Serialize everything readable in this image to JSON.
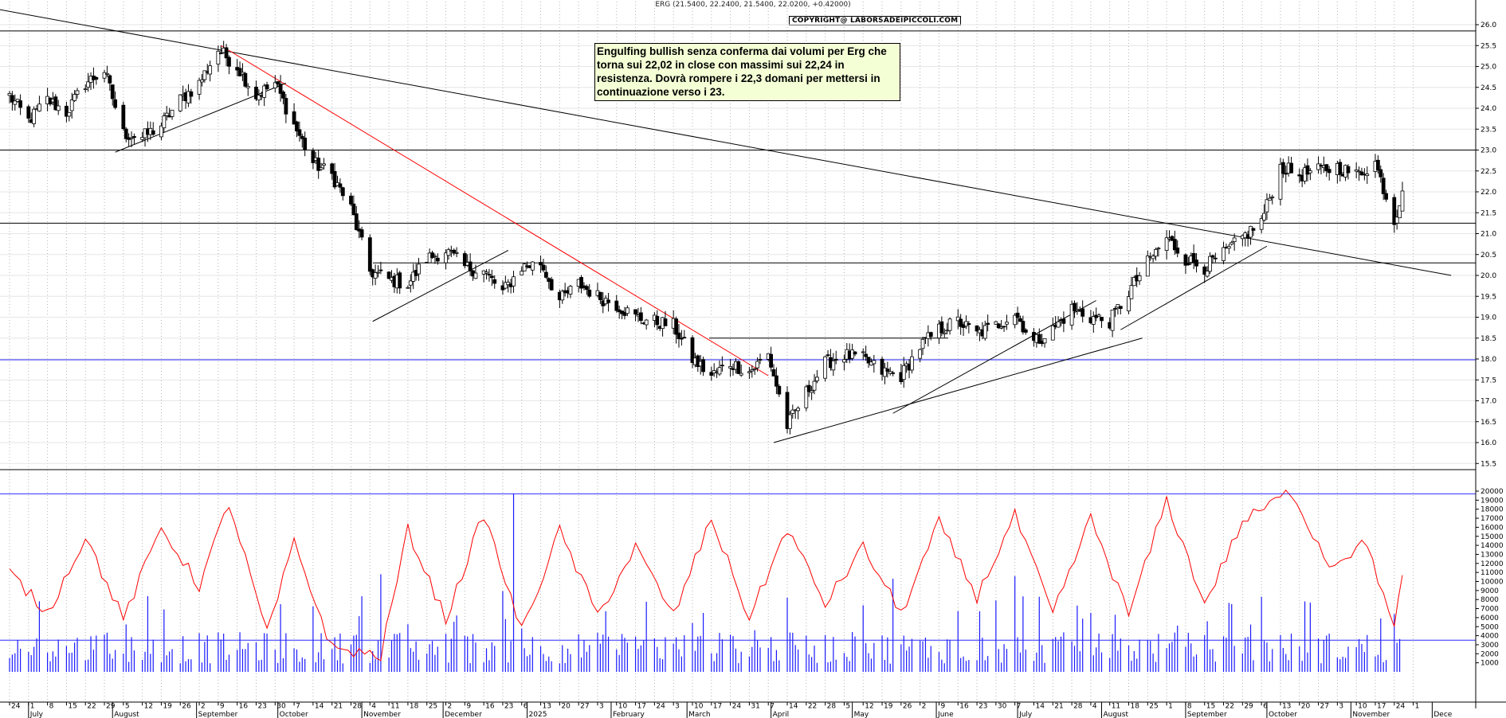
{
  "header": {
    "ticker_line": "ERG (21.5400, 22.2400, 21.5400, 22.0200, +0.42000)",
    "copyright": "COPYRIGHT@ LABORSADEIPICCOLI.COM"
  },
  "annotation": {
    "text": "Engulfing bullish senza conferma dai volumi per Erg che torna sui 22,02 in close con massimi sui 22,24 in resistenza. Dovrà rompere i 22,3 domani per mettersi in continuazione verso i 23."
  },
  "colors": {
    "candle": "#000000",
    "volume": "#1a1aff",
    "volume_ma": "#ff0000",
    "red_trendline": "#ff0000",
    "blue_level": "#2a2aff",
    "grid": "#b4b4b4"
  },
  "chart_data": [
    {
      "type": "candlestick",
      "name": "ERG daily",
      "ylim": [
        15.2,
        26.2
      ],
      "y_ticks": [
        "15.5",
        "16.0",
        "16.5",
        "17.0",
        "17.5",
        "18.0",
        "18.5",
        "19.0",
        "19.5",
        "20.0",
        "20.5",
        "21.0",
        "21.5",
        "22.0",
        "22.5",
        "23.0",
        "23.5",
        "24.0",
        "24.5",
        "25.0",
        "25.5",
        "26.0"
      ],
      "close_path": [
        [
          "2024-06-24",
          24.3
        ],
        [
          "2024-07-01",
          23.7
        ],
        [
          "2024-07-08",
          24.2
        ],
        [
          "2024-07-15",
          23.9
        ],
        [
          "2024-07-22",
          24.6
        ],
        [
          "2024-07-29",
          24.9
        ],
        [
          "2024-08-05",
          23.4
        ],
        [
          "2024-08-12",
          23.3
        ],
        [
          "2024-08-19",
          23.6
        ],
        [
          "2024-08-26",
          24.2
        ],
        [
          "2024-09-02",
          24.6
        ],
        [
          "2024-09-09",
          25.4
        ],
        [
          "2024-09-16",
          25.0
        ],
        [
          "2024-09-23",
          24.3
        ],
        [
          "2024-09-30",
          24.6
        ],
        [
          "2024-10-07",
          23.6
        ],
        [
          "2024-10-14",
          22.7
        ],
        [
          "2024-10-21",
          22.4
        ],
        [
          "2024-10-28",
          21.6
        ],
        [
          "2024-11-04",
          20.1
        ],
        [
          "2024-11-11",
          19.9
        ],
        [
          "2024-11-18",
          19.8
        ],
        [
          "2024-11-25",
          20.4
        ],
        [
          "2024-12-02",
          20.6
        ],
        [
          "2024-12-09",
          20.2
        ],
        [
          "2024-12-16",
          20.1
        ],
        [
          "2024-12-23",
          19.6
        ],
        [
          "2024-12-30",
          20.2
        ],
        [
          "2025-01-06",
          20.3
        ],
        [
          "2025-01-13",
          19.4
        ],
        [
          "2025-01-20",
          19.8
        ],
        [
          "2025-01-27",
          19.5
        ],
        [
          "2025-02-03",
          19.3
        ],
        [
          "2025-02-10",
          19.0
        ],
        [
          "2025-02-17",
          18.9
        ],
        [
          "2025-02-24",
          18.8
        ],
        [
          "2025-03-03",
          18.0
        ],
        [
          "2025-03-10",
          17.6
        ],
        [
          "2025-03-17",
          17.9
        ],
        [
          "2025-03-24",
          17.7
        ],
        [
          "2025-03-31",
          18.1
        ],
        [
          "2025-04-07",
          16.4
        ],
        [
          "2025-04-14",
          17.2
        ],
        [
          "2025-04-21",
          17.9
        ],
        [
          "2025-04-28",
          18.1
        ],
        [
          "2025-05-05",
          18.0
        ],
        [
          "2025-05-12",
          17.7
        ],
        [
          "2025-05-19",
          17.6
        ],
        [
          "2025-05-26",
          18.3
        ],
        [
          "2025-06-02",
          18.7
        ],
        [
          "2025-06-09",
          18.9
        ],
        [
          "2025-06-16",
          18.6
        ],
        [
          "2025-06-23",
          18.8
        ],
        [
          "2025-06-30",
          19.1
        ],
        [
          "2025-07-07",
          18.4
        ],
        [
          "2025-07-14",
          18.7
        ],
        [
          "2025-07-21",
          19.2
        ],
        [
          "2025-07-28",
          19.0
        ],
        [
          "2025-08-04",
          18.9
        ],
        [
          "2025-08-11",
          19.6
        ],
        [
          "2025-08-18",
          20.3
        ],
        [
          "2025-08-25",
          20.9
        ],
        [
          "2025-09-01",
          20.4
        ],
        [
          "2025-09-08",
          20.2
        ],
        [
          "2025-09-15",
          20.5
        ],
        [
          "2025-09-22",
          20.9
        ],
        [
          "2025-09-29",
          21.3
        ],
        [
          "2025-10-06",
          22.6
        ],
        [
          "2025-10-13",
          22.4
        ],
        [
          "2025-10-20",
          22.5
        ],
        [
          "2025-10-27",
          22.6
        ],
        [
          "2025-11-03",
          22.4
        ],
        [
          "2025-11-10",
          22.7
        ],
        [
          "2025-11-17",
          21.3
        ],
        [
          "2025-11-20",
          22.02
        ]
      ],
      "last_bar": {
        "open": 21.54,
        "high": 22.24,
        "low": 21.54,
        "close": 22.02,
        "change": 0.42
      },
      "horizontal_levels": [
        {
          "value": 25.85,
          "color": "black"
        },
        {
          "value": 23.0,
          "color": "black"
        },
        {
          "value": 21.25,
          "color": "black"
        },
        {
          "value": 20.3,
          "color": "black"
        },
        {
          "value": 18.5,
          "color": "black"
        },
        {
          "value": 17.98,
          "color": "blue"
        }
      ],
      "trendlines": [
        {
          "from": [
            "2024-06-17",
            26.4
          ],
          "to": [
            "2025-12-08",
            20.0
          ],
          "color": "black"
        },
        {
          "from": [
            "2024-09-10",
            25.5
          ],
          "to": [
            "2025-03-31",
            17.6
          ],
          "color": "red"
        },
        {
          "from": [
            "2024-08-02",
            22.95
          ],
          "to": [
            "2024-10-04",
            24.6
          ],
          "color": "black"
        },
        {
          "from": [
            "2024-11-05",
            18.9
          ],
          "to": [
            "2024-12-25",
            20.6
          ],
          "color": "black"
        },
        {
          "from": [
            "2025-04-02",
            16.0
          ],
          "to": [
            "2025-08-16",
            18.5
          ],
          "color": "black"
        },
        {
          "from": [
            "2025-05-16",
            16.7
          ],
          "to": [
            "2025-07-30",
            19.4
          ],
          "color": "black"
        },
        {
          "from": [
            "2025-08-08",
            18.7
          ],
          "to": [
            "2025-10-01",
            20.7
          ],
          "color": "black"
        }
      ]
    },
    {
      "type": "bar",
      "name": "Volume",
      "ylim": [
        0,
        20000
      ],
      "y_ticks": [
        "1000",
        "2000",
        "3000",
        "4000",
        "5000",
        "6000",
        "7000",
        "8000",
        "9000",
        "10000",
        "11000",
        "12000",
        "13000",
        "14000",
        "15000",
        "16000",
        "17000",
        "18000",
        "19000",
        "20000"
      ],
      "horizontal_levels": [
        3500,
        19700
      ],
      "spikes": [
        [
          "2024-12-27",
          19700
        ],
        [
          "2024-11-08",
          10800
        ],
        [
          "2025-04-07",
          8200
        ],
        [
          "2025-05-16",
          10300
        ],
        [
          "2025-11-17",
          6400
        ],
        [
          "2025-06-30",
          10600
        ]
      ]
    },
    {
      "type": "line",
      "name": "Volume moving average",
      "ylim": [
        0,
        20000
      ],
      "values_path": [
        [
          "2024-06-24",
          11000
        ],
        [
          "2024-07-08",
          6500
        ],
        [
          "2024-07-22",
          15000
        ],
        [
          "2024-08-05",
          5800
        ],
        [
          "2024-08-19",
          16000
        ],
        [
          "2024-09-02",
          9500
        ],
        [
          "2024-09-13",
          18700
        ],
        [
          "2024-09-27",
          4200
        ],
        [
          "2024-10-07",
          14300
        ],
        [
          "2024-10-21",
          2600
        ],
        [
          "2024-11-08",
          1800
        ],
        [
          "2024-11-18",
          15700
        ],
        [
          "2024-12-02",
          5800
        ],
        [
          "2024-12-16",
          17500
        ],
        [
          "2024-12-30",
          4500
        ],
        [
          "2025-01-13",
          15600
        ],
        [
          "2025-01-27",
          6200
        ],
        [
          "2025-02-10",
          13800
        ],
        [
          "2025-02-24",
          6200
        ],
        [
          "2025-03-10",
          17000
        ],
        [
          "2025-03-24",
          5900
        ],
        [
          "2025-04-07",
          15900
        ],
        [
          "2025-04-21",
          7500
        ],
        [
          "2025-05-05",
          13800
        ],
        [
          "2025-05-19",
          6400
        ],
        [
          "2025-06-02",
          16500
        ],
        [
          "2025-06-16",
          8300
        ],
        [
          "2025-06-30",
          17300
        ],
        [
          "2025-07-14",
          6300
        ],
        [
          "2025-07-28",
          17000
        ],
        [
          "2025-08-11",
          6300
        ],
        [
          "2025-08-25",
          19000
        ],
        [
          "2025-09-08",
          7500
        ],
        [
          "2025-09-22",
          16600
        ],
        [
          "2025-10-10",
          20000
        ],
        [
          "2025-10-24",
          11800
        ],
        [
          "2025-11-07",
          14300
        ],
        [
          "2025-11-17",
          4500
        ],
        [
          "2025-11-20",
          10700
        ]
      ]
    }
  ],
  "x_axis": {
    "day_ticks": [
      "24",
      "1",
      "8",
      "15",
      "22",
      "29",
      "5",
      "12",
      "19",
      "26",
      "2",
      "9",
      "16",
      "23",
      "30",
      "7",
      "14",
      "21",
      "28",
      "4",
      "11",
      "18",
      "25",
      "2",
      "9",
      "16",
      "23",
      "6",
      "13",
      "20",
      "27",
      "3",
      "10",
      "17",
      "24",
      "3",
      "10",
      "17",
      "24",
      "31",
      "7",
      "14",
      "22",
      "28",
      "5",
      "12",
      "19",
      "26",
      "2",
      "9",
      "16",
      "23",
      "30",
      "7",
      "14",
      "21",
      "28",
      "4",
      "11",
      "18",
      "25",
      "1",
      "8",
      "15",
      "22",
      "29",
      "6",
      "13",
      "20",
      "27",
      "3",
      "10",
      "17",
      "24",
      "1"
    ],
    "month_labels": [
      "July",
      "August",
      "September",
      "October",
      "November",
      "December",
      "2025",
      "February",
      "March",
      "April",
      "May",
      "June",
      "July",
      "August",
      "September",
      "October",
      "November",
      "Dece"
    ]
  }
}
